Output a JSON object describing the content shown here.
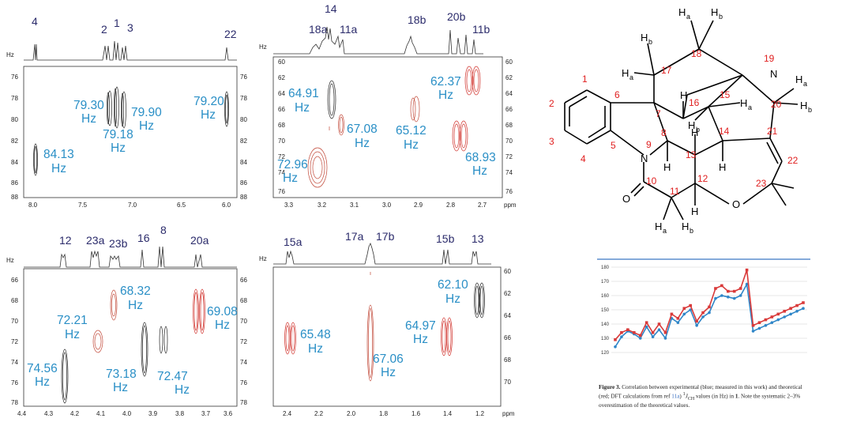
{
  "units": {
    "hz": "Hz",
    "ppm": "ppm"
  },
  "spectra": [
    {
      "id": "panel-a",
      "peak_labels": [
        "4",
        "2",
        "1",
        "3",
        "22"
      ],
      "x_ticks": [
        "8.0",
        "7.5",
        "7.0",
        "6.5",
        "6.0"
      ],
      "y_ticks": [
        "76",
        "78",
        "80",
        "82",
        "84",
        "86",
        "88"
      ],
      "right_ticks": [
        "76",
        "78",
        "80",
        "82",
        "84",
        "86",
        "88"
      ],
      "coupling_labels": [
        {
          "value": "79.30",
          "unit": "Hz"
        },
        {
          "value": "79.18",
          "unit": "Hz"
        },
        {
          "value": "79.90",
          "unit": "Hz"
        },
        {
          "value": "79.20",
          "unit": "Hz"
        },
        {
          "value": "84.13",
          "unit": "Hz"
        }
      ]
    },
    {
      "id": "panel-b",
      "peak_labels": [
        "14",
        "18a",
        "11a",
        "18b",
        "20b",
        "11b"
      ],
      "x_ticks": [
        "3.3",
        "3.2",
        "3.1",
        "3.0",
        "2.9",
        "2.8",
        "2.7"
      ],
      "y_ticks": [
        "60",
        "62",
        "64",
        "66",
        "68",
        "70",
        "72",
        "74",
        "76"
      ],
      "right_ticks": [
        "60",
        "62",
        "64",
        "66",
        "68",
        "70",
        "72",
        "74",
        "76"
      ],
      "coupling_labels": [
        {
          "value": "64.91",
          "unit": "Hz"
        },
        {
          "value": "67.08",
          "unit": "Hz"
        },
        {
          "value": "65.12",
          "unit": "Hz"
        },
        {
          "value": "62.37",
          "unit": "Hz"
        },
        {
          "value": "68.93",
          "unit": "Hz"
        },
        {
          "value": "72.96",
          "unit": "Hz"
        }
      ]
    },
    {
      "id": "panel-c",
      "peak_labels": [
        "12",
        "23a",
        "23b",
        "16",
        "8",
        "20a"
      ],
      "x_ticks": [
        "4.4",
        "4.3",
        "4.2",
        "4.1",
        "4.0",
        "3.9",
        "3.8",
        "3.7",
        "3.6"
      ],
      "y_ticks": [
        "66",
        "68",
        "70",
        "72",
        "74",
        "76",
        "78"
      ],
      "right_ticks": [
        "66",
        "68",
        "70",
        "72",
        "74",
        "76",
        "78"
      ],
      "coupling_labels": [
        {
          "value": "68.32",
          "unit": "Hz"
        },
        {
          "value": "72.21",
          "unit": "Hz"
        },
        {
          "value": "69.08",
          "unit": "Hz"
        },
        {
          "value": "74.56",
          "unit": "Hz"
        },
        {
          "value": "73.18",
          "unit": "Hz"
        },
        {
          "value": "72.47",
          "unit": "Hz"
        }
      ]
    },
    {
      "id": "panel-d",
      "peak_labels": [
        "15a",
        "17a",
        "17b",
        "15b",
        "13"
      ],
      "x_ticks": [
        "2.4",
        "2.2",
        "2.0",
        "1.8",
        "1.6",
        "1.4",
        "1.2"
      ],
      "y_ticks": [
        "",
        "",
        "",
        "",
        ""
      ],
      "right_ticks": [
        "60",
        "62",
        "64",
        "66",
        "68",
        "70"
      ],
      "coupling_labels": [
        {
          "value": "62.10",
          "unit": "Hz"
        },
        {
          "value": "65.48",
          "unit": "Hz"
        },
        {
          "value": "64.97",
          "unit": "Hz"
        },
        {
          "value": "67.06",
          "unit": "Hz"
        }
      ]
    }
  ],
  "structure": {
    "atoms": {
      "N": "N",
      "O": "O",
      "H": "H"
    },
    "h_labels": [
      "H",
      "a",
      "H",
      "b",
      "H",
      "b",
      "H",
      "a",
      "H",
      "a",
      "H",
      "b",
      "H",
      "a",
      "H",
      "b",
      "H",
      "a",
      "H",
      "b"
    ],
    "numbers": [
      "1",
      "2",
      "3",
      "4",
      "5",
      "6",
      "7",
      "8",
      "9",
      "10",
      "11",
      "12",
      "13",
      "14",
      "15",
      "16",
      "17",
      "18",
      "19",
      "20",
      "21",
      "22",
      "23"
    ]
  },
  "chart_data": {
    "type": "line",
    "categories": [
      "",
      "",
      "",
      "",
      "",
      "",
      "",
      "",
      "",
      "",
      "",
      "",
      "",
      "",
      "",
      "",
      "",
      "",
      "",
      "",
      "",
      "",
      "",
      "",
      "",
      "",
      "",
      "",
      "",
      "",
      ""
    ],
    "ylim": [
      120,
      180
    ],
    "y_ticks": [
      "180",
      "170",
      "160",
      "150",
      "140",
      "130",
      "120"
    ],
    "grid": true,
    "colors": {
      "experimental": "#2f86c8",
      "theoretical": "#d93a3a"
    },
    "series": [
      {
        "values": [
          124,
          131,
          135,
          133,
          130,
          138,
          131,
          136,
          130,
          144,
          141,
          147,
          150,
          139,
          145,
          148,
          158,
          160,
          159,
          158,
          160,
          168,
          135,
          137,
          139,
          141,
          143,
          145,
          147,
          149,
          151
        ]
      },
      {
        "values": [
          129,
          134,
          136,
          134,
          132,
          141,
          134,
          140,
          134,
          147,
          144,
          151,
          153,
          142,
          148,
          152,
          165,
          167,
          163,
          163,
          165,
          178,
          139,
          141,
          143,
          145,
          147,
          149,
          151,
          153,
          155
        ]
      }
    ]
  },
  "caption": {
    "fig": "Figure 3.",
    "text1": " Correlation between experimental (blue; measured in this work) and theoretical (red; DFT calculations from ref ",
    "ref": "11a",
    "text2": ") ",
    "sup": "1",
    "jsub": "J",
    "sub": "CH",
    "text3": " values (in Hz) in ",
    "bold": "1",
    "text4": ". Note the systematic 2–3% overestimation of the theoretical values."
  }
}
